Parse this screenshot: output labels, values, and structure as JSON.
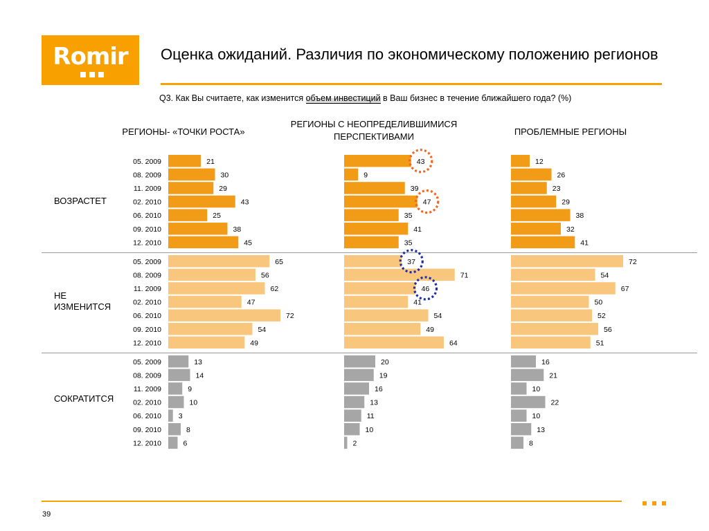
{
  "logo": {
    "text": "Romir"
  },
  "title": "Оценка ожиданий. Различия по экономическому положению регионов",
  "question": {
    "prefix": "Q3. Как Вы считаете, как изменится ",
    "highlight": "объем инвестиций",
    "suffix": " в Ваш бизнес в течение ближайшего года? (%)"
  },
  "page_number": "39",
  "colors": {
    "brand": "#f7a000",
    "increase": "#f29b17",
    "same": "#f8c67c",
    "decrease": "#a6a6a6",
    "highlight_orange": "#f26522",
    "highlight_blue": "#1f2ca8"
  },
  "chart_data": {
    "type": "bar",
    "orientation": "horizontal",
    "categories": [
      "05. 2009",
      "08. 2009",
      "11. 2009",
      "02. 2010",
      "06. 2010",
      "09. 2010",
      "12. 2010"
    ],
    "columns": [
      "РЕГИОНЫ- «ТОЧКИ РОСТА»",
      "РЕГИОНЫ   С НЕОПРЕДЕЛИВШИМИСЯ ПЕРСПЕКТИВАМИ",
      "ПРОБЛЕМНЫЕ РЕГИОНЫ"
    ],
    "groups": [
      {
        "label": "ВОЗРАСТЕТ",
        "series": [
          {
            "values": [
              21,
              30,
              29,
              43,
              25,
              38,
              45
            ]
          },
          {
            "values": [
              43,
              9,
              39,
              47,
              35,
              41,
              35
            ]
          },
          {
            "values": [
              12,
              26,
              23,
              29,
              38,
              32,
              41
            ]
          }
        ]
      },
      {
        "label": "НЕ ИЗМЕНИТСЯ",
        "series": [
          {
            "values": [
              65,
              56,
              62,
              47,
              72,
              54,
              49
            ]
          },
          {
            "values": [
              37,
              71,
              46,
              41,
              54,
              49,
              64
            ]
          },
          {
            "values": [
              72,
              54,
              67,
              50,
              52,
              56,
              51
            ]
          }
        ]
      },
      {
        "label": "СОКРАТИТСЯ",
        "series": [
          {
            "values": [
              13,
              14,
              9,
              10,
              3,
              8,
              6
            ]
          },
          {
            "values": [
              20,
              19,
              16,
              13,
              11,
              10,
              2
            ]
          },
          {
            "values": [
              16,
              21,
              10,
              22,
              10,
              13,
              8
            ]
          }
        ]
      }
    ],
    "annotations": [
      {
        "group": 0,
        "column": 1,
        "category": "05. 2009",
        "value": 43,
        "style": "dotted-circle",
        "color": "orange"
      },
      {
        "group": 0,
        "column": 1,
        "category": "02. 2010",
        "value": 47,
        "style": "dotted-circle",
        "color": "orange"
      },
      {
        "group": 1,
        "column": 1,
        "category": "05. 2009",
        "value": 37,
        "style": "dotted-circle",
        "color": "blue"
      },
      {
        "group": 1,
        "column": 1,
        "category": "11. 2009",
        "value": 46,
        "style": "dotted-circle",
        "color": "blue"
      }
    ],
    "xlim": [
      0,
      100
    ],
    "grid": false
  }
}
